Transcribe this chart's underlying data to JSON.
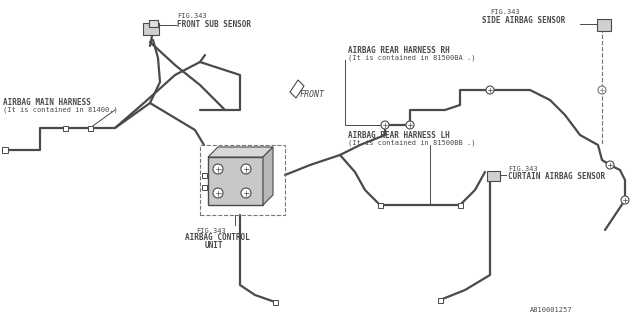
{
  "bg_color": "#ffffff",
  "line_color": "#4a4a4a",
  "text_color": "#4a4a4a",
  "dashed_color": "#777777",
  "fig_width": 6.4,
  "fig_height": 3.2,
  "part_number": "A810001257",
  "labels": {
    "front_sub_sensor_fig": "FIG.343",
    "front_sub_sensor": "FRONT SUB SENSOR",
    "side_airbag_sensor_fig": "FIG.343",
    "side_airbag_sensor": "SIDE AIRBAG SENSOR",
    "airbag_main_harness_1": "AIRBAG MAIN HARNESS",
    "airbag_main_harness_2": "(It is contained in 81400.)",
    "airbag_rear_rh_1": "AIRBAG REAR HARNESS RH",
    "airbag_rear_rh_2": "(It is contained in 81500BA .)",
    "airbag_rear_lh_1": "AIRBAG REAR HARNESS LH",
    "airbag_rear_lh_2": "(It is contained in 81500BB .)",
    "airbag_control_fig": "FIG.343",
    "airbag_control_1": "AIRBAG CONTROL",
    "airbag_control_2": "UNIT",
    "curtain_sensor_fig": "FIG.343",
    "curtain_sensor": "CURTAIN AIRBAG SENSOR",
    "front_arrow": "FRONT"
  }
}
